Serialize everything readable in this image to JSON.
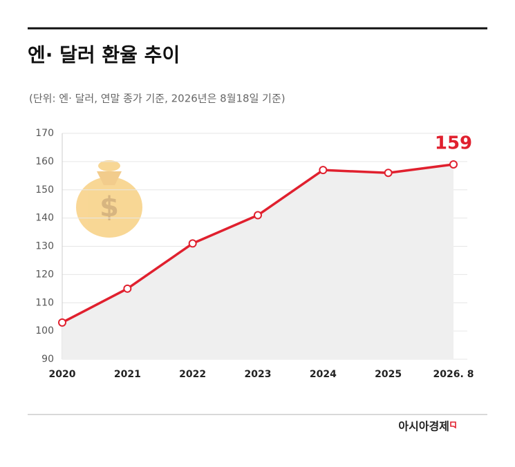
{
  "chart_data": {
    "type": "line",
    "title": "엔· 달러 환율 추이",
    "subtitle": "(단위: 엔· 달러, 연말 종가 기준, 2026년은 8월18일 기준)",
    "categories": [
      "2020",
      "2021",
      "2022",
      "2023",
      "2024",
      "2025",
      "2026. 8"
    ],
    "values": [
      103,
      115,
      131,
      141,
      157,
      156,
      159
    ],
    "color": "#e0202e",
    "ylim": [
      90,
      170
    ],
    "yticks": [
      90,
      100,
      110,
      120,
      130,
      140,
      150,
      160,
      170
    ],
    "grid": true,
    "source": "아시아경제"
  }
}
